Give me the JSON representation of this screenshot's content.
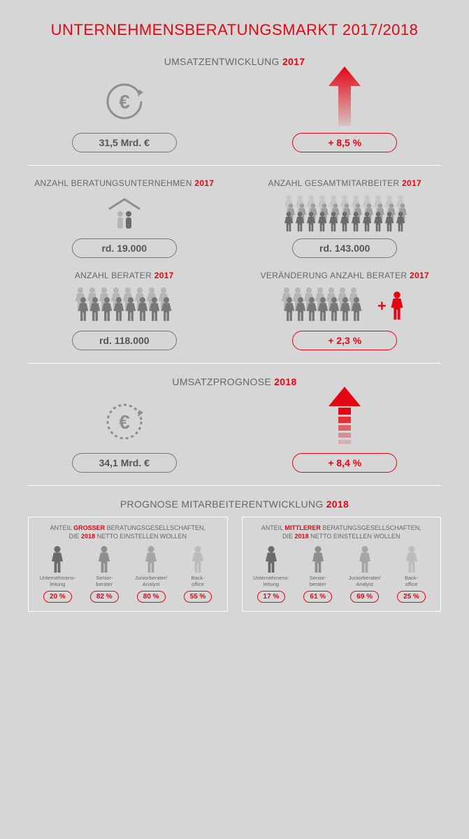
{
  "colors": {
    "red": "#e30613",
    "grey_dark": "#6b6b6b",
    "grey_mid": "#8e8e8e",
    "grey_light": "#b5b5b5",
    "bg": "#d6d6d6"
  },
  "title": "UNTERNEHMENSBERATUNGSMARKT 2017/2018",
  "umsatz2017": {
    "title_prefix": "UMSATZENTWICKLUNG ",
    "title_year": "2017",
    "value": "31,5 Mrd. €",
    "growth": "+ 8,5 %"
  },
  "stats": {
    "firms": {
      "title_prefix": "ANZAHL BERATUNGSUNTERNEHMEN ",
      "title_year": "2017",
      "value": "rd. 19.000"
    },
    "employees": {
      "title_prefix": "ANZAHL GESAMTMITARBEITER ",
      "title_year": "2017",
      "value": "rd. 143.000"
    },
    "consultants": {
      "title_prefix": "ANZAHL BERATER ",
      "title_year": "2017",
      "value": "rd. 118.000"
    },
    "consultants_change": {
      "title_prefix": "VERÄNDERUNG ANZAHL BERATER ",
      "title_year": "2017",
      "value": "+ 2,3 %"
    }
  },
  "umsatz2018": {
    "title_prefix": "UMSATZPROGNOSE ",
    "title_year": "2018",
    "value": "34,1 Mrd. €",
    "growth": "+ 8,4 %"
  },
  "forecast": {
    "title_prefix": "PROGNOSE MITARBEITERENTWICKLUNG ",
    "title_year": "2018",
    "large": {
      "line1": "ANTEIL ",
      "bold": "GROSSER",
      "line2": " BERATUNGSGESELLSCHAFTEN,",
      "line3": "DIE ",
      "bold2": "2018",
      "line4": " NETTO EINSTELLEN WOLLEN",
      "roles": [
        {
          "label": "Unternehmens-\nleitung",
          "pct": "20 %",
          "shade": "#6b6b6b"
        },
        {
          "label": "Senior-\nberater",
          "pct": "82 %",
          "shade": "#8e8e8e"
        },
        {
          "label": "Juniorberater/\nAnalyst",
          "pct": "80 %",
          "shade": "#a5a5a5"
        },
        {
          "label": "Back-\noffice",
          "pct": "55 %",
          "shade": "#bcbcbc"
        }
      ]
    },
    "medium": {
      "line1": "ANTEIL ",
      "bold": "MITTLERER",
      "line2": " BERATUNGSGESELLSCHAFTEN,",
      "line3": "DIE ",
      "bold2": "2018",
      "line4": " NETTO EINSTELLEN WOLLEN",
      "roles": [
        {
          "label": "Unternehmens-\nleitung",
          "pct": "17 %",
          "shade": "#6b6b6b"
        },
        {
          "label": "Senior-\nberater",
          "pct": "61 %",
          "shade": "#8e8e8e"
        },
        {
          "label": "Juniorberater/\nAnalyst",
          "pct": "69 %",
          "shade": "#a5a5a5"
        },
        {
          "label": "Back-\noffice",
          "pct": "25 %",
          "shade": "#bcbcbc"
        }
      ]
    }
  }
}
